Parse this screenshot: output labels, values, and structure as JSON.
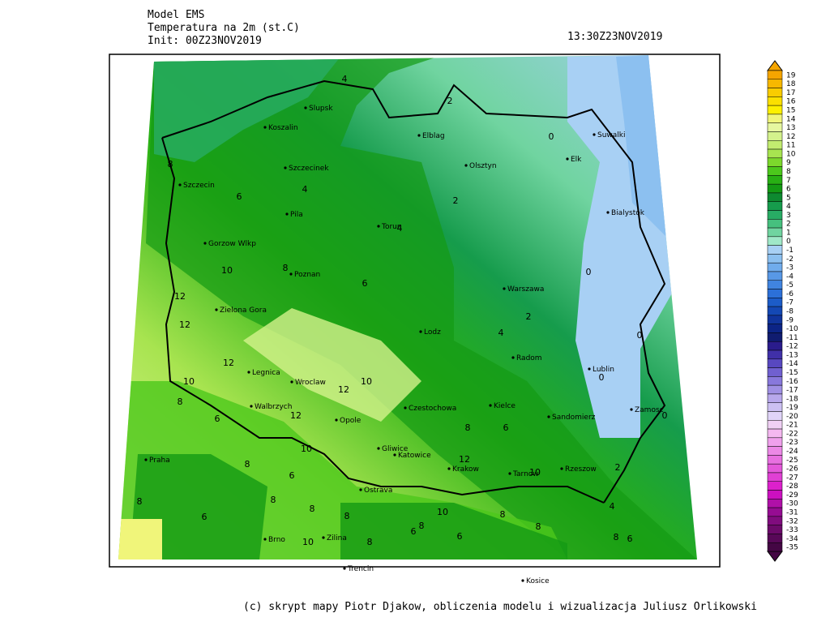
{
  "header": {
    "model": "Model EMS",
    "variable": "Temperatura na 2m (st.C)",
    "init": "Init: 00Z23NOV2019",
    "valid_time": "13:30Z23NOV2019"
  },
  "cities": [
    "Slupsk",
    "Koszalin",
    "Elblag",
    "Suwalki",
    "Elk",
    "Olsztyn",
    "Szczecinek",
    "Szczecin",
    "Pila",
    "Torun",
    "Bialystok",
    "Gorzow Wlkp",
    "Poznan",
    "Warszawa",
    "Zielona Gora",
    "Lodz",
    "Radom",
    "Lublin",
    "Legnica",
    "Wroclaw",
    "Walbrzych",
    "Czestochowa",
    "Kielce",
    "Sandomierz",
    "Zamosc",
    "Opole",
    "Gliwice",
    "Katowice",
    "Krakow",
    "Tarnow",
    "Rzeszow",
    "Praha",
    "Brno",
    "Ostrava",
    "Zilina",
    "Trencin",
    "Kosice"
  ],
  "contour_labels": [
    4,
    2,
    0,
    8,
    6,
    4,
    2,
    4,
    0,
    10,
    8,
    6,
    12,
    2,
    12,
    4,
    0,
    12,
    0,
    10,
    10,
    12,
    8,
    12,
    0,
    6,
    8,
    6,
    10,
    12,
    8,
    6,
    10,
    2,
    8,
    8,
    8,
    8,
    10,
    8,
    4,
    6,
    8,
    6,
    8,
    6,
    8,
    6,
    10,
    8
  ],
  "colorbar": {
    "levels": [
      19,
      18,
      17,
      16,
      15,
      14,
      13,
      12,
      11,
      10,
      9,
      8,
      7,
      6,
      5,
      4,
      3,
      2,
      1,
      0,
      -1,
      -2,
      -3,
      -4,
      -5,
      -6,
      -7,
      -8,
      -9,
      -10,
      -11,
      -12,
      -13,
      -14,
      -15,
      -16,
      -17,
      -18,
      -19,
      -20,
      -21,
      -22,
      -23,
      -24,
      -25,
      -26,
      -27,
      -28,
      -29,
      -30,
      -31,
      -32,
      -33,
      -34,
      -35
    ],
    "colors": [
      "#f5a500",
      "#f7b800",
      "#f9cc00",
      "#fbe000",
      "#fdf000",
      "#f0f57a",
      "#e6f7a0",
      "#d4f28c",
      "#c2ec70",
      "#a8e450",
      "#7cd82c",
      "#4cc81c",
      "#28b014",
      "#149a14",
      "#0e8a30",
      "#169c4c",
      "#28ac64",
      "#46c07e",
      "#70d4a0",
      "#a0e8c8",
      "#a8d0f4",
      "#8cc0f0",
      "#70acec",
      "#5898e6",
      "#4084e0",
      "#2c70d8",
      "#1c5cc8",
      "#1448b4",
      "#10349c",
      "#0c2486",
      "#101c70",
      "#2a1c8c",
      "#4030a8",
      "#5848c0",
      "#7060d0",
      "#8878dc",
      "#a090e4",
      "#b8a8ec",
      "#ccc0f2",
      "#e0d4f8",
      "#f0d0f4",
      "#f4b8f0",
      "#f0a0ec",
      "#ec88e6",
      "#e870e0",
      "#e458da",
      "#e040d4",
      "#dc20cc",
      "#cc10c0",
      "#b010a8",
      "#960c92",
      "#800c7e",
      "#6c0a6a",
      "#580858",
      "#440644"
    ]
  },
  "footer": "(c) skrypt mapy Piotr Djakow, obliczenia modelu i wizualizacja Juliusz Orlikowski"
}
